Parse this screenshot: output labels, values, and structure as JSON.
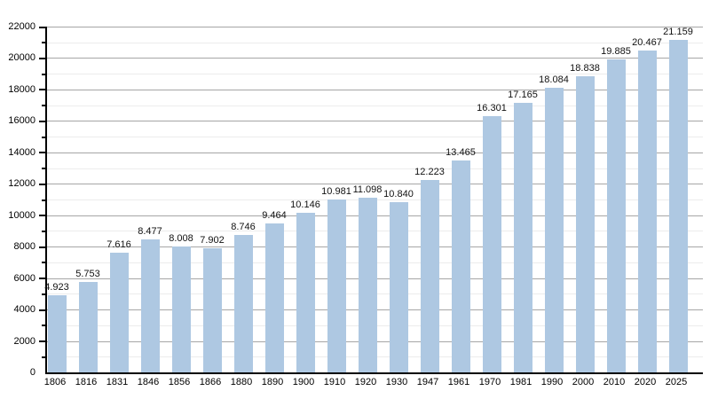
{
  "chart_data": {
    "type": "bar",
    "title": "",
    "xlabel": "",
    "ylabel": "",
    "categories": [
      "1806",
      "1816",
      "1831",
      "1846",
      "1856",
      "1866",
      "1880",
      "1890",
      "1900",
      "1910",
      "1920",
      "1930",
      "1947",
      "1961",
      "1970",
      "1981",
      "1990",
      "2000",
      "2010",
      "2020",
      "2025"
    ],
    "values": [
      4923,
      5753,
      7616,
      8477,
      8008,
      7902,
      8746,
      9464,
      10146,
      10981,
      11098,
      10840,
      12223,
      13465,
      16301,
      17165,
      18084,
      18838,
      19885,
      20467,
      21159
    ],
    "value_labels": [
      "4.923",
      "5.753",
      "7.616",
      "8.477",
      "8.008",
      "7.902",
      "8.746",
      "9.464",
      "10.146",
      "10.981",
      "11.098",
      "10.840",
      "12.223",
      "13.465",
      "16.301",
      "17.165",
      "18.084",
      "18.838",
      "19.885",
      "20.467",
      "21.159"
    ],
    "ylim": [
      0,
      22000
    ],
    "y_tick_interval": 2000,
    "y_minor_tick_interval": 1000,
    "y_tick_labels": [
      "0",
      "2000",
      "4000",
      "6000",
      "8000",
      "10000",
      "12000",
      "14000",
      "16000",
      "18000",
      "20000",
      "22000"
    ],
    "grid": "on",
    "legend": "none",
    "colors": {
      "bar_fill": "#aec8e2",
      "major_grid": "#a6a6a6",
      "minor_grid": "#ececec",
      "axis": "#000000",
      "label_text": "#111111"
    }
  }
}
